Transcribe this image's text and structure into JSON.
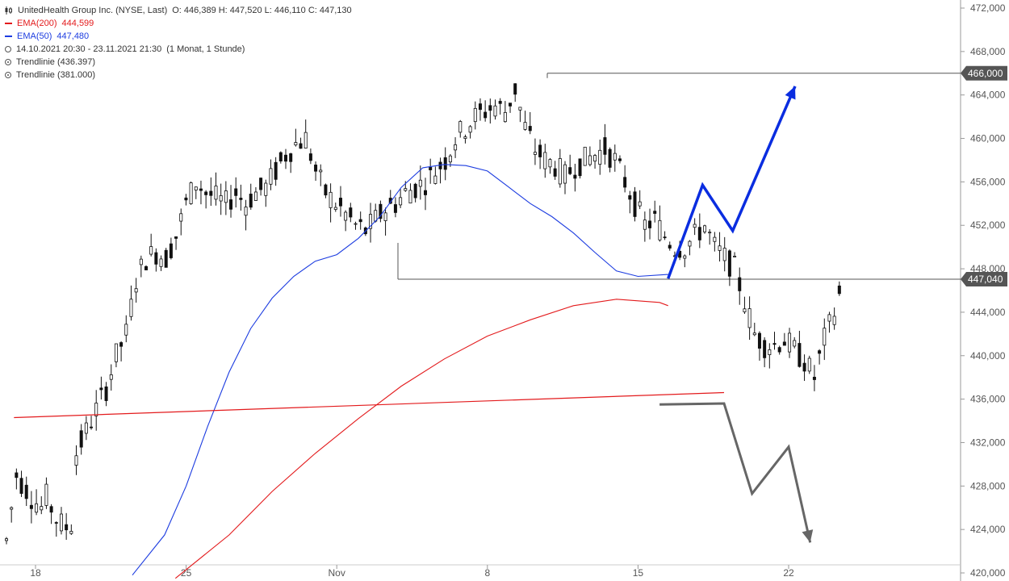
{
  "legend": {
    "instrument": "UnitedHealth Group Inc. (NYSE, Last)",
    "ohlc": "O: 446,389  H: 447,520  L: 446,110  C: 447,130",
    "ema200_label": "EMA(200)",
    "ema200_value": "444,599",
    "ema50_label": "EMA(50)",
    "ema50_value": "447,480",
    "range": "14.10.2021 20:30 - 23.11.2021 21:30",
    "interval": "(1 Monat, 1 Stunde)",
    "trend1": "Trendlinie  (436.397)",
    "trend2": "Trendlinie  (381.000)"
  },
  "colors": {
    "ema200": "#e31a1c",
    "ema50": "#1c3ce0",
    "trendline": "#e31a1c",
    "candle": "#111111",
    "blue_arrow": "#0a2de0",
    "gray_arrow": "#666666",
    "level_line": "#555555",
    "price_tag": "#555555"
  },
  "chart_data": {
    "type": "line",
    "x_ticks": [
      "18",
      "25",
      "Nov",
      "8",
      "15",
      "22"
    ],
    "y_ticks": [
      "420,000",
      "424,000",
      "428,000",
      "432,000",
      "436,000",
      "440,000",
      "444,000",
      "448,000",
      "452,000",
      "456,000",
      "460,000",
      "464,000",
      "468,000",
      "472,000"
    ],
    "ylim": [
      420,
      472
    ],
    "price_tags": [
      {
        "label": "466,000",
        "value": 466.0
      },
      {
        "label": "447,040",
        "value": 447.04
      }
    ],
    "resistance_level": 466.0,
    "support_level": 447.04,
    "series": [
      {
        "name": "EMA(200)",
        "values": [
          [
            24.5,
            419.5
          ],
          [
            27,
            423.5
          ],
          [
            29,
            427.5
          ],
          [
            31,
            431.0
          ],
          [
            33,
            434.2
          ],
          [
            35,
            437.2
          ],
          [
            37,
            439.7
          ],
          [
            39,
            441.8
          ],
          [
            41,
            443.3
          ],
          [
            43,
            444.6
          ],
          [
            45,
            445.2
          ],
          [
            47,
            444.9
          ],
          [
            47.4,
            444.6
          ]
        ]
      },
      {
        "name": "EMA(50)",
        "values": [
          [
            22.5,
            419.8
          ],
          [
            24,
            423.5
          ],
          [
            25,
            428.0
          ],
          [
            26,
            433.5
          ],
          [
            27,
            438.5
          ],
          [
            28,
            442.5
          ],
          [
            29,
            445.3
          ],
          [
            30,
            447.3
          ],
          [
            31,
            448.7
          ],
          [
            32,
            449.3
          ],
          [
            33,
            450.8
          ],
          [
            34,
            452.8
          ],
          [
            35,
            455.5
          ],
          [
            36,
            457.3
          ],
          [
            37,
            457.6
          ],
          [
            38,
            457.5
          ],
          [
            39,
            457.0
          ],
          [
            40,
            455.5
          ],
          [
            41,
            454.0
          ],
          [
            42,
            452.8
          ],
          [
            43,
            451.3
          ],
          [
            44,
            449.5
          ],
          [
            45,
            447.8
          ],
          [
            46,
            447.3
          ],
          [
            47.4,
            447.48
          ]
        ]
      },
      {
        "name": "Trendlinie",
        "values": [
          [
            17,
            434.3
          ],
          [
            50,
            436.6
          ]
        ]
      }
    ],
    "projection_up": [
      [
        47.4,
        447.1
      ],
      [
        49.0,
        455.7
      ],
      [
        50.4,
        451.5
      ],
      [
        53.3,
        464.8
      ]
    ],
    "projection_down": [
      [
        47.0,
        435.5
      ],
      [
        50.0,
        435.6
      ],
      [
        51.3,
        427.3
      ],
      [
        53.0,
        431.6
      ],
      [
        54.0,
        422.8
      ]
    ]
  }
}
